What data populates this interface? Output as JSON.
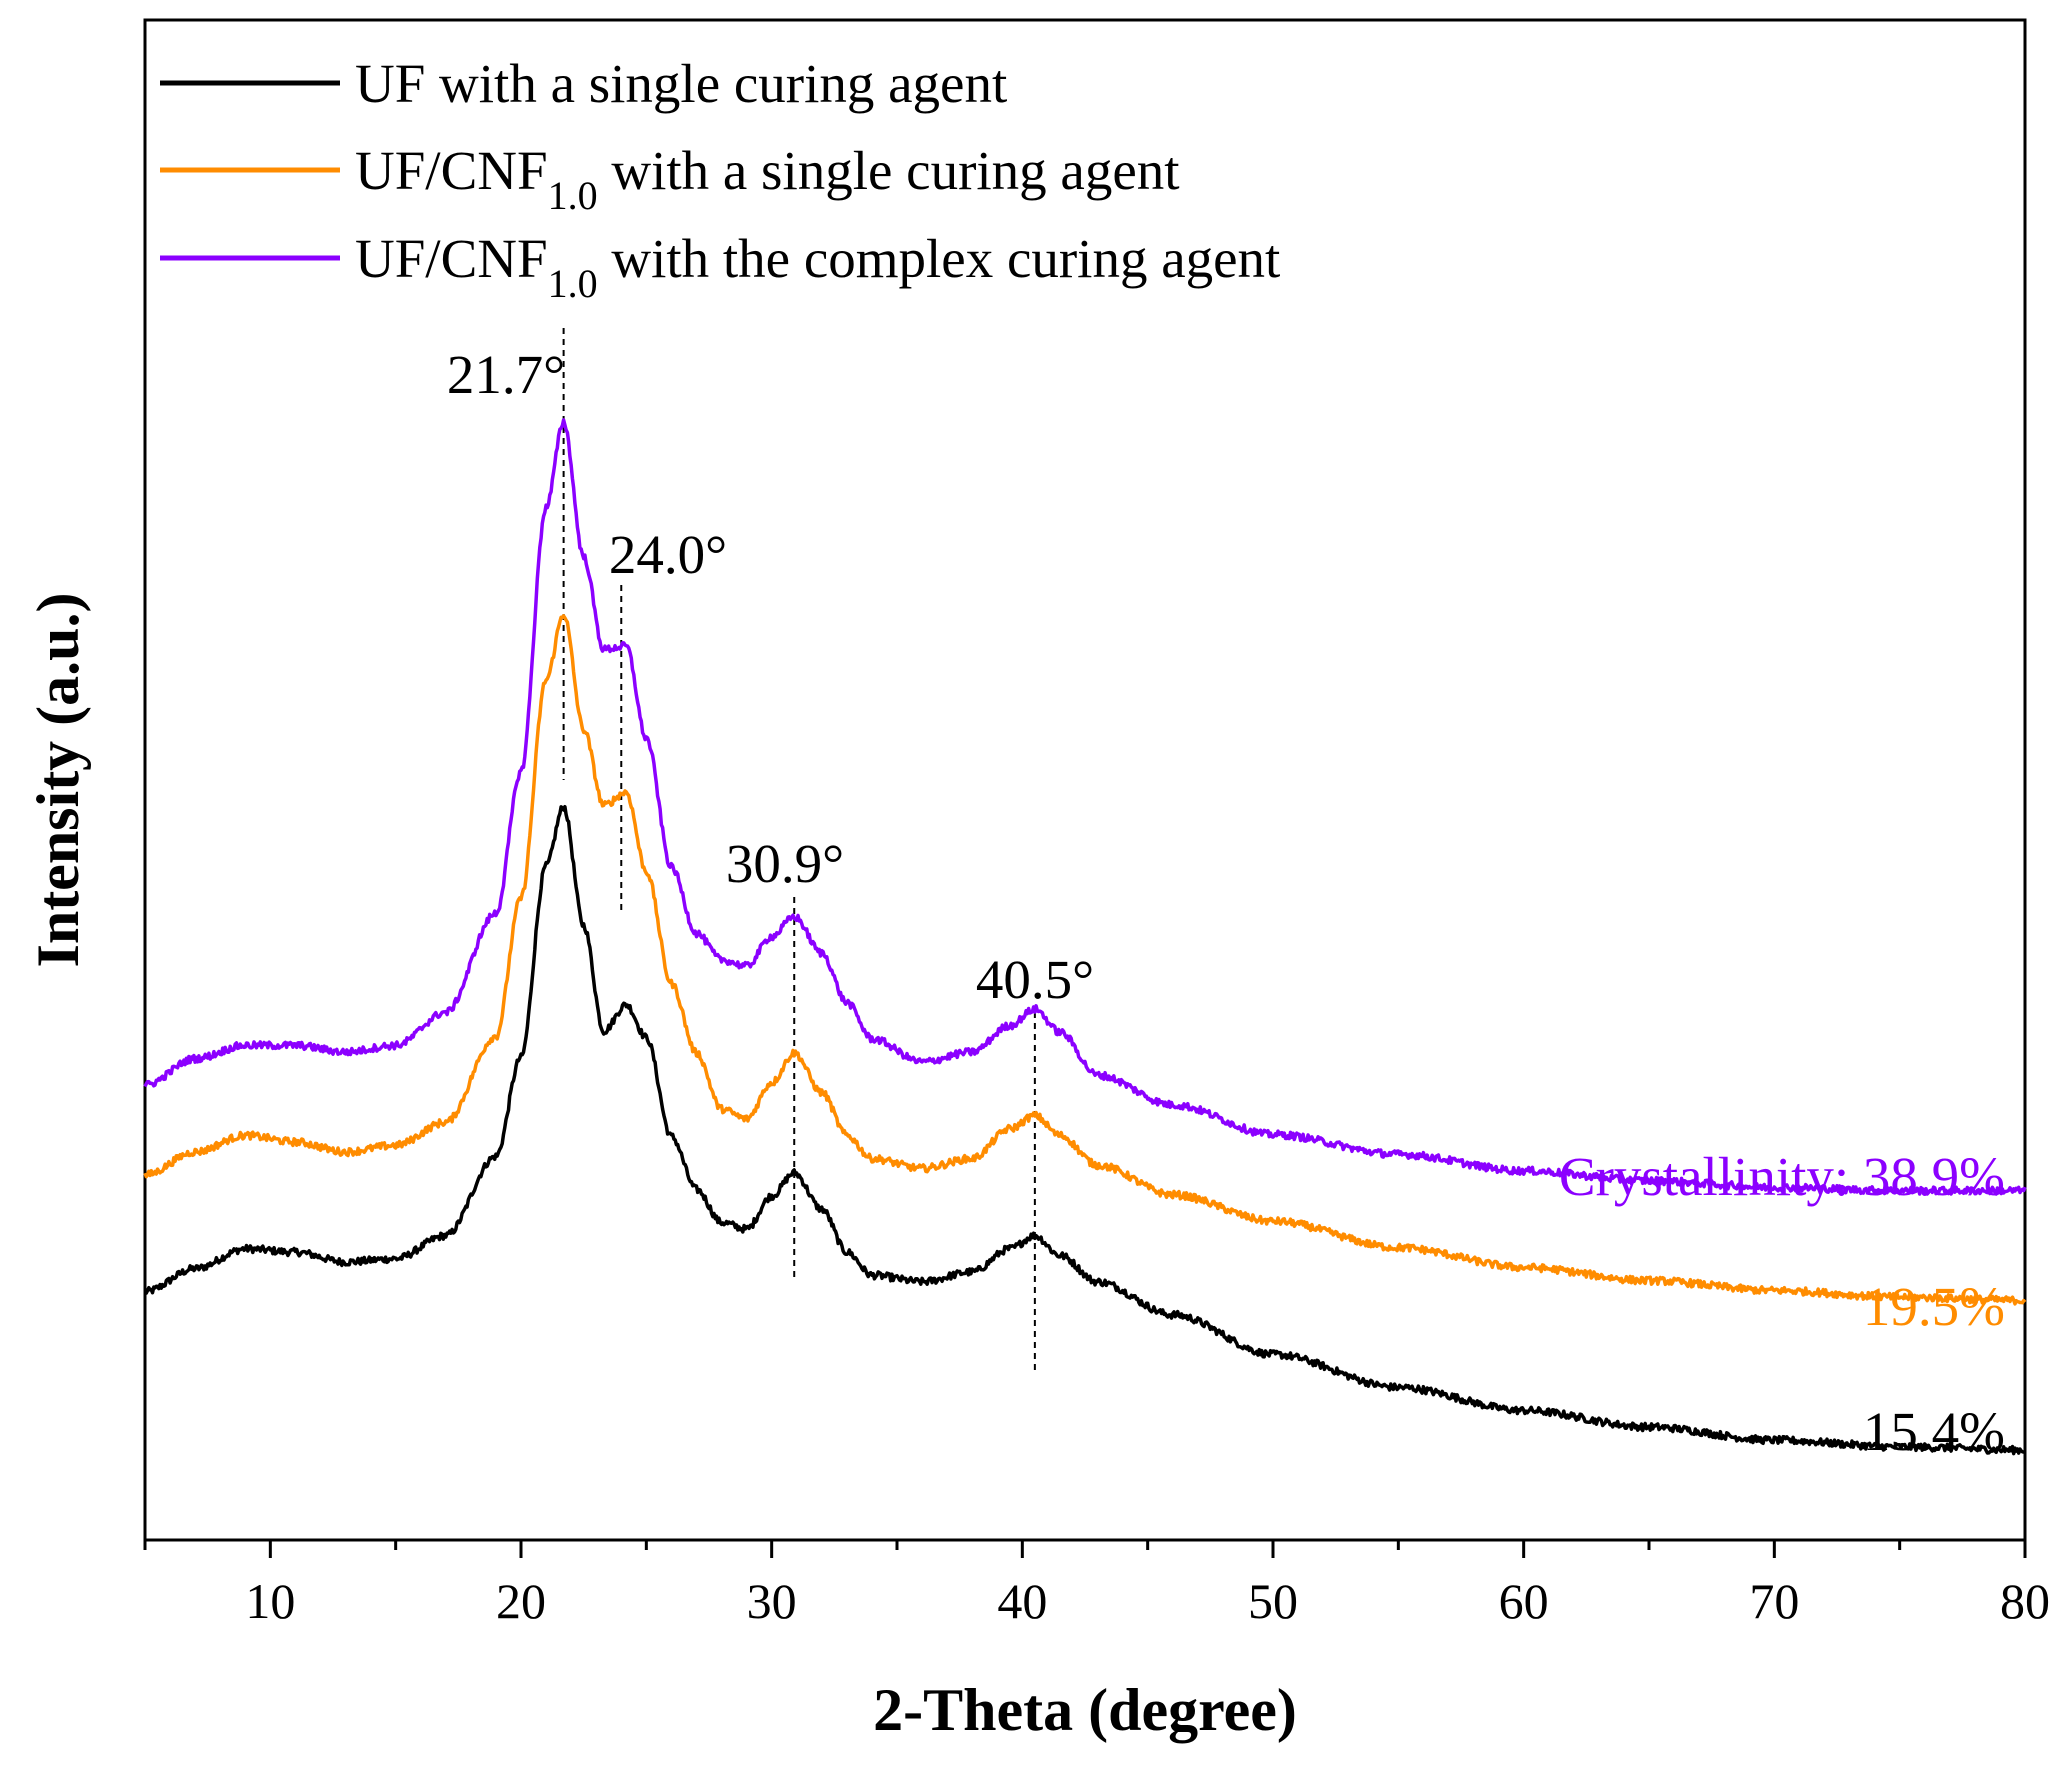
{
  "chart_data": {
    "type": "line",
    "title": "",
    "xlabel": "2-Theta (degree)",
    "ylabel": "Intensity (a.u.)",
    "xlim": [
      5,
      80
    ],
    "xticks": [
      10,
      20,
      30,
      40,
      50,
      60,
      70,
      80
    ],
    "y_ticks_shown": false,
    "grid": false,
    "legend_position": "top-left",
    "legend": [
      {
        "series": 0,
        "text": "UF with a single curing agent"
      },
      {
        "series": 1,
        "text_before": "UF/CNF",
        "subscript": "1.0",
        "text_after": " with a single curing agent"
      },
      {
        "series": 2,
        "text_before": "UF/CNF",
        "subscript": "1.0",
        "text_after": " with the complex curing agent"
      }
    ],
    "series": [
      {
        "name": "UF with a single curing agent",
        "color": "#000000",
        "crystallinity_label": "15.4%",
        "points": [
          [
            5,
            1
          ],
          [
            7,
            8
          ],
          [
            9,
            14
          ],
          [
            11,
            13
          ],
          [
            13,
            10
          ],
          [
            15,
            11
          ],
          [
            17,
            18
          ],
          [
            19,
            42
          ],
          [
            20,
            72
          ],
          [
            21,
            130
          ],
          [
            21.7,
            148
          ],
          [
            22.5,
            112
          ],
          [
            23.3,
            80
          ],
          [
            24.2,
            88
          ],
          [
            25,
            78
          ],
          [
            26,
            48
          ],
          [
            27,
            32
          ],
          [
            28,
            22
          ],
          [
            29,
            20
          ],
          [
            30,
            30
          ],
          [
            30.9,
            37
          ],
          [
            32,
            26
          ],
          [
            33,
            13
          ],
          [
            34,
            6
          ],
          [
            36,
            4
          ],
          [
            38,
            7
          ],
          [
            39.5,
            14
          ],
          [
            40.5,
            18
          ],
          [
            41.5,
            12
          ],
          [
            43,
            4
          ],
          [
            46,
            -6
          ],
          [
            50,
            -18
          ],
          [
            55,
            -28
          ],
          [
            60,
            -35
          ],
          [
            65,
            -40
          ],
          [
            70,
            -44
          ],
          [
            75,
            -46
          ],
          [
            80,
            -47
          ]
        ]
      },
      {
        "name": "UF/CNF1.0 with a single curing agent",
        "color": "#ff8c00",
        "crystallinity_label": "19.5%",
        "points": [
          [
            5,
            0
          ],
          [
            7,
            7
          ],
          [
            9,
            12
          ],
          [
            11,
            10
          ],
          [
            13,
            7
          ],
          [
            15,
            9
          ],
          [
            17,
            16
          ],
          [
            19,
            42
          ],
          [
            20,
            84
          ],
          [
            21,
            150
          ],
          [
            21.7,
            170
          ],
          [
            22.5,
            135
          ],
          [
            23.3,
            112
          ],
          [
            24.2,
            116
          ],
          [
            25,
            92
          ],
          [
            26,
            58
          ],
          [
            27,
            37
          ],
          [
            28,
            20
          ],
          [
            29,
            17
          ],
          [
            30,
            28
          ],
          [
            30.9,
            37
          ],
          [
            32,
            25
          ],
          [
            33,
            12
          ],
          [
            34,
            5
          ],
          [
            36,
            2
          ],
          [
            38,
            5
          ],
          [
            39.5,
            14
          ],
          [
            40.5,
            18
          ],
          [
            41.5,
            12
          ],
          [
            43,
            3
          ],
          [
            46,
            -6
          ],
          [
            50,
            -14
          ],
          [
            55,
            -22
          ],
          [
            60,
            -28
          ],
          [
            65,
            -32
          ],
          [
            70,
            -35
          ],
          [
            75,
            -37
          ],
          [
            80,
            -38
          ]
        ]
      },
      {
        "name": "UF/CNF1.0 with the complex curing agent",
        "color": "#8b00ff",
        "crystallinity_label": "38.9%",
        "crystallinity_prefix": "Crystallinity: ",
        "points": [
          [
            5,
            0
          ],
          [
            7,
            8
          ],
          [
            9,
            12
          ],
          [
            11,
            12
          ],
          [
            13,
            10
          ],
          [
            15,
            12
          ],
          [
            17,
            22
          ],
          [
            19,
            52
          ],
          [
            20,
            95
          ],
          [
            21,
            175
          ],
          [
            21.7,
            201
          ],
          [
            22.5,
            160
          ],
          [
            23.3,
            132
          ],
          [
            24.2,
            133
          ],
          [
            25,
            105
          ],
          [
            26,
            66
          ],
          [
            27,
            46
          ],
          [
            28,
            38
          ],
          [
            29,
            36
          ],
          [
            30,
            45
          ],
          [
            30.9,
            51
          ],
          [
            32,
            40
          ],
          [
            33,
            25
          ],
          [
            34,
            14
          ],
          [
            36,
            7
          ],
          [
            38,
            10
          ],
          [
            39.5,
            18
          ],
          [
            40.5,
            23
          ],
          [
            41.5,
            16
          ],
          [
            43,
            3
          ],
          [
            46,
            -6
          ],
          [
            50,
            -15
          ],
          [
            55,
            -21
          ],
          [
            60,
            -26
          ],
          [
            65,
            -29
          ],
          [
            70,
            -31
          ],
          [
            75,
            -32
          ],
          [
            80,
            -32
          ]
        ]
      }
    ],
    "peak_annotations": [
      {
        "x": 21.7,
        "label": "21.7°"
      },
      {
        "x": 24.0,
        "label": "24.0°"
      },
      {
        "x": 30.9,
        "label": "30.9°"
      },
      {
        "x": 40.5,
        "label": "40.5°"
      }
    ]
  }
}
